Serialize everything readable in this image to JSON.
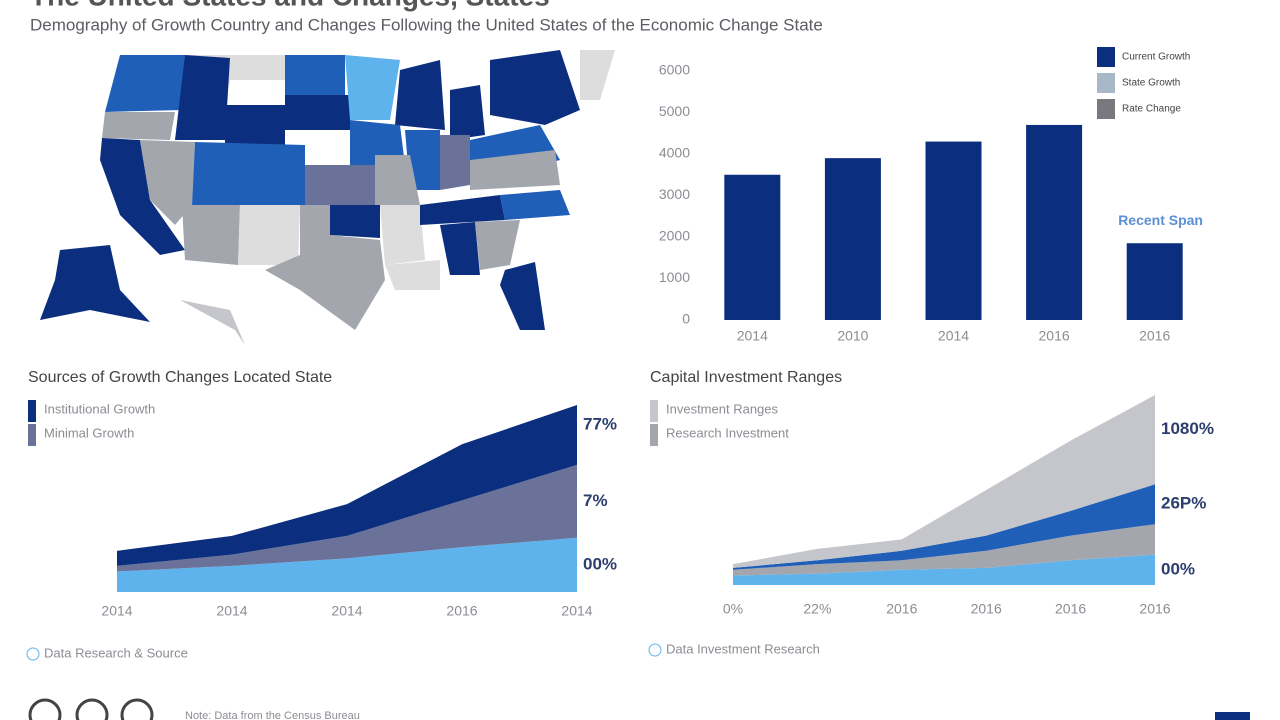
{
  "header": {
    "title": "The United States and Changes, States",
    "subtitle": "Demography of Growth Country and Changes Following the United States of the Economic Change State"
  },
  "chart_data": [
    {
      "type": "bar",
      "categories": [
        "2014",
        "2010",
        "2014",
        "2016",
        "2016"
      ],
      "values": [
        3500,
        3900,
        4300,
        4700,
        1850
      ],
      "color": "#0b2f7e",
      "ylim": [
        0,
        6000
      ],
      "yticks": [
        0,
        1000,
        2000,
        3000,
        4000,
        5000,
        6000
      ],
      "annotation": "Recent Span",
      "legend": [
        {
          "label": "Current Growth",
          "color": "#0b2f7e"
        },
        {
          "label": "State Growth",
          "color": "#a9b8c9"
        },
        {
          "label": "Rate Change",
          "color": "#77797f"
        }
      ]
    },
    {
      "type": "area",
      "title": "Sources of Growth Changes Located State",
      "categories": [
        "2014",
        "2014",
        "2014",
        "2016",
        "2014"
      ],
      "ylim": [
        0,
        100
      ],
      "series": [
        {
          "color": "#5fb3ec",
          "values": [
            11,
            14,
            18,
            24,
            29
          ]
        },
        {
          "name": "Minimal Growth",
          "color": "#6a7299",
          "values": [
            3,
            6,
            12,
            25,
            39
          ]
        },
        {
          "name": "Institutional Growth",
          "color": "#0b2f7e",
          "values": [
            8,
            10,
            17,
            30,
            32
          ]
        }
      ],
      "end_labels": [
        "00%",
        "7%",
        "77%"
      ],
      "note": "Data Research & Source"
    },
    {
      "type": "area",
      "title": "Capital Investment Ranges",
      "categories": [
        "0%",
        "22%",
        "2016",
        "2016",
        "2016",
        "2016"
      ],
      "ylim": [
        0,
        100
      ],
      "series": [
        {
          "color": "#5fb3ec",
          "values": [
            5,
            6,
            8,
            9,
            13,
            16
          ]
        },
        {
          "name": "Research Investment",
          "color": "#a3a6ac",
          "values": [
            3,
            5,
            5,
            9,
            13,
            16
          ]
        },
        {
          "color": "#1f5fb8",
          "values": [
            1,
            2,
            5,
            8,
            13,
            21
          ]
        },
        {
          "name": "Investment Ranges",
          "color": "#c4c6cc",
          "values": [
            2,
            6,
            6,
            24,
            37,
            47
          ]
        }
      ],
      "end_labels": [
        "00%",
        null,
        "26P%",
        "1080%"
      ],
      "note": "Data Investment Research"
    }
  ],
  "footer": {
    "note": "Note: Data from the Census Bureau"
  }
}
